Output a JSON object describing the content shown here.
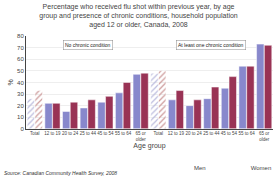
{
  "chart_data": {
    "type": "bar",
    "title": "Percentage who received flu shot within previous year, by age\ngroup and presence of chronic conditions, household population\naged 12 or older, Canada, 2008",
    "xlabel": "Age group",
    "ylabel": "%",
    "categories": [
      "Total",
      "12 to 19",
      "20 to 24",
      "25 to 44",
      "45 to 54",
      "55 to 64",
      "65 or\nolder",
      "Total",
      "12 to 19",
      "20 to 24",
      "25 to 44",
      "45 to 54",
      "55 to 64",
      "65 or\nolder"
    ],
    "series": [
      {
        "name": "Men",
        "color": "#8888cc",
        "colors": [
          "#bbbbdd",
          "#8888cc",
          "#8888cc",
          "#8888cc",
          "#8888cc",
          "#8888cc",
          "#8888cc",
          "#bbbbdd",
          "#8888cc",
          "#8888cc",
          "#8888cc",
          "#8888cc",
          "#8888cc",
          "#8888cc"
        ],
        "values": [
          26,
          22,
          15,
          18,
          23,
          31,
          47,
          48,
          25,
          20,
          26,
          35,
          54,
          73
        ]
      },
      {
        "name": "Women",
        "color": "#993355",
        "colors": [
          "#cc9999",
          "#993355",
          "#993355",
          "#993355",
          "#993355",
          "#993355",
          "#993355",
          "#cc9999",
          "#993355",
          "#993355",
          "#993355",
          "#993355",
          "#993355",
          "#993355"
        ],
        "values": [
          33,
          22,
          23,
          25,
          28,
          40,
          48,
          50,
          33,
          25,
          36,
          45,
          54,
          72
        ]
      }
    ],
    "ylim": [
      0,
      80
    ],
    "yticks": [
      0,
      10,
      20,
      30,
      40,
      50,
      60,
      70,
      80
    ],
    "grid": true,
    "legend": "bottom",
    "annotations": [
      {
        "text": "No chronic condition",
        "x": 3,
        "y": 72
      },
      {
        "text": "At least one chronic condition",
        "x": 10,
        "y": 72
      },
      {
        "text": "Source: Canadian Community Health Survey, 2008"
      }
    ]
  }
}
